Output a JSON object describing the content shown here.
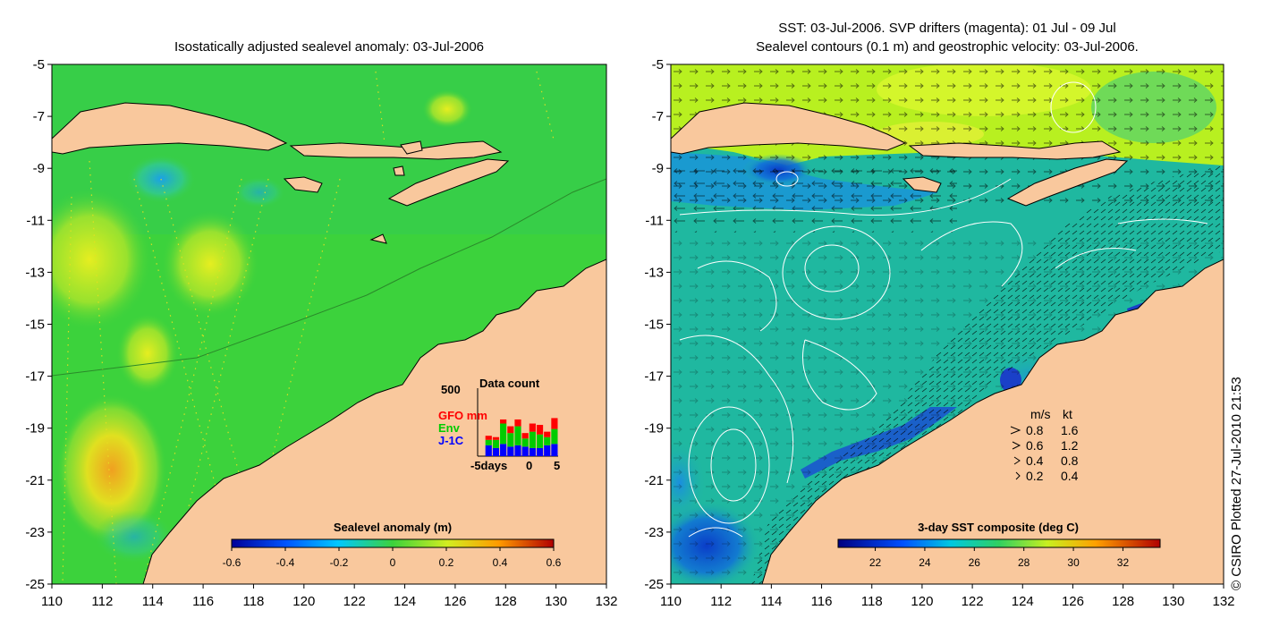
{
  "left_panel": {
    "title": "Isostatically adjusted sealevel anomaly: 03-Jul-2006",
    "colorbar": {
      "title": "Sealevel anomaly (m)",
      "ticks": [
        "-0.6",
        "-0.4",
        "-0.2",
        "0",
        "0.2",
        "0.4",
        "0.6"
      ],
      "range": [
        -0.6,
        0.6
      ]
    },
    "data_count": {
      "title": "Data count",
      "ymax_label": "500",
      "legend": [
        {
          "label": "GFO mm",
          "color": "#ff0000"
        },
        {
          "label": "Env",
          "color": "#00cc00"
        },
        {
          "label": "J-1C",
          "color": "#0000ff"
        }
      ],
      "x_min_label": "-5days",
      "x_mid_label": "0",
      "x_max_label": "5",
      "days": [
        -5,
        -4,
        -3,
        -2,
        -1,
        0,
        1,
        2,
        3,
        4,
        5
      ],
      "series": [
        {
          "name": "J-1C",
          "values": [
            0,
            80,
            60,
            90,
            70,
            80,
            70,
            60,
            60,
            80,
            90
          ]
        },
        {
          "name": "Env",
          "values": [
            0,
            40,
            60,
            150,
            100,
            140,
            60,
            120,
            100,
            60,
            110
          ]
        },
        {
          "name": "GFO mm",
          "values": [
            0,
            30,
            20,
            30,
            50,
            50,
            40,
            60,
            70,
            40,
            80
          ]
        }
      ]
    }
  },
  "right_panel": {
    "title_line1": "SST: 03-Jul-2006. SVP drifters (magenta): 01 Jul - 09 Jul",
    "title_line2": "Sealevel contours (0.1 m) and geostrophic velocity: 03-Jul-2006.",
    "colorbar": {
      "title": "3-day SST composite (deg C)",
      "ticks": [
        "22",
        "24",
        "26",
        "28",
        "30",
        "32"
      ],
      "range": [
        20.5,
        33.5
      ]
    },
    "velocity_legend": {
      "header_ms": "m/s",
      "header_kt": "kt",
      "rows": [
        {
          "ms": "0.8",
          "kt": "1.6"
        },
        {
          "ms": "0.6",
          "kt": "1.2"
        },
        {
          "ms": "0.4",
          "kt": "0.8"
        },
        {
          "ms": "0.2",
          "kt": "0.4"
        }
      ]
    }
  },
  "axes": {
    "x_ticks": [
      "110",
      "112",
      "114",
      "116",
      "118",
      "120",
      "122",
      "124",
      "126",
      "128",
      "130",
      "132"
    ],
    "y_ticks": [
      "-5",
      "-7",
      "-9",
      "-11",
      "-13",
      "-15",
      "-17",
      "-19",
      "-21",
      "-23",
      "-25"
    ],
    "lon_range": [
      110,
      132
    ],
    "lat_range": [
      -25,
      -5
    ]
  },
  "credit": "© CSIRO Plotted 27-Jul-2010 21:53",
  "colors": {
    "land": "#f9c89d",
    "ocean_sla": "#3cd23c",
    "ocean_sst_warm": "#b8f020",
    "ocean_sst_mid": "#1fb8a0",
    "ocean_sst_cold": "#0a3cc8"
  }
}
